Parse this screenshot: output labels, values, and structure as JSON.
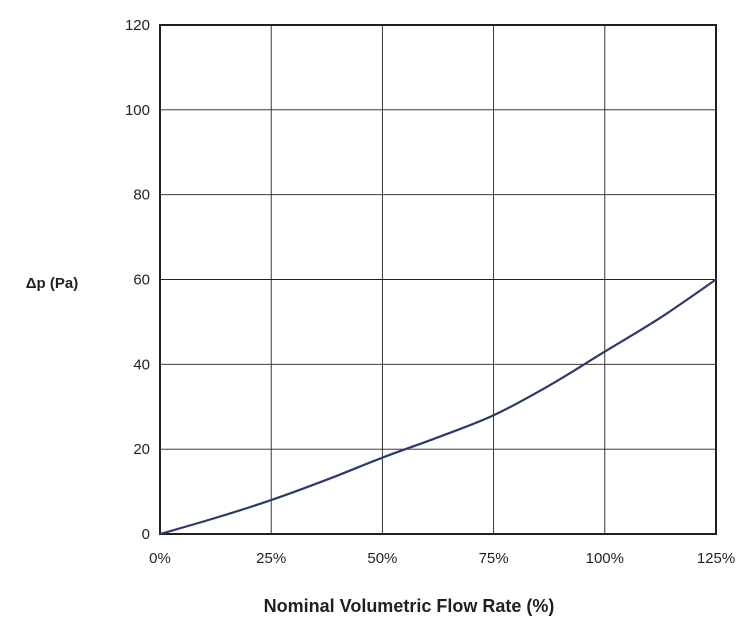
{
  "chart_data": {
    "type": "line",
    "title": "",
    "xlabel": "Nominal Volumetric Flow Rate (%)",
    "ylabel": "Δp (Pa)",
    "xlim": [
      0,
      125
    ],
    "ylim": [
      0,
      120
    ],
    "x_ticks": [
      0,
      25,
      50,
      75,
      100,
      125
    ],
    "x_tick_labels": [
      "0%",
      "25%",
      "50%",
      "75%",
      "100%",
      "125%"
    ],
    "y_ticks": [
      0,
      20,
      40,
      60,
      80,
      100,
      120
    ],
    "y_tick_labels": [
      "0",
      "20",
      "40",
      "60",
      "80",
      "100",
      "120"
    ],
    "grid": true,
    "series": [
      {
        "color": "#2b3a6b",
        "x": [
          0,
          12.5,
          25,
          37.5,
          50,
          62.5,
          75,
          87.5,
          100,
          112.5,
          125
        ],
        "y": [
          0,
          3.8,
          8,
          12.8,
          18,
          22.8,
          28,
          35,
          43,
          51,
          60
        ]
      }
    ]
  }
}
